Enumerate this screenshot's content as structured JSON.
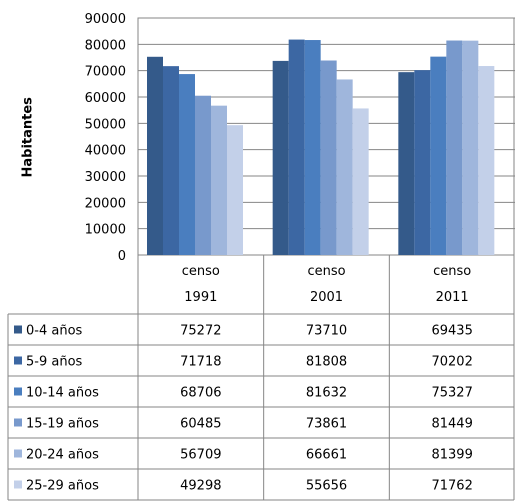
{
  "chart_data": {
    "type": "bar",
    "ylabel": "Habitantes",
    "ylim": [
      0,
      90000
    ],
    "yticks": [
      0,
      10000,
      20000,
      30000,
      40000,
      50000,
      60000,
      70000,
      80000,
      90000
    ],
    "categories": [
      {
        "line1": "censo",
        "line2": "1991"
      },
      {
        "line1": "censo",
        "line2": "2001"
      },
      {
        "line1": "censo",
        "line2": "2011"
      }
    ],
    "series": [
      {
        "name": "0-4 años",
        "color": "#345a8a",
        "values": [
          75272,
          73710,
          69435
        ]
      },
      {
        "name": "5-9 años",
        "color": "#3c67a3",
        "values": [
          71718,
          81808,
          70202
        ]
      },
      {
        "name": "10-14 años",
        "color": "#4a7ebf",
        "values": [
          68706,
          81632,
          75327
        ]
      },
      {
        "name": "15-19 años",
        "color": "#7899cc",
        "values": [
          60485,
          73861,
          81449
        ]
      },
      {
        "name": "20-24 años",
        "color": "#9fb6dc",
        "values": [
          56709,
          66661,
          81399
        ]
      },
      {
        "name": "25-29 años",
        "color": "#c3d0e9",
        "values": [
          49298,
          55656,
          71762
        ]
      }
    ],
    "grid": true,
    "legend": "table-below"
  }
}
